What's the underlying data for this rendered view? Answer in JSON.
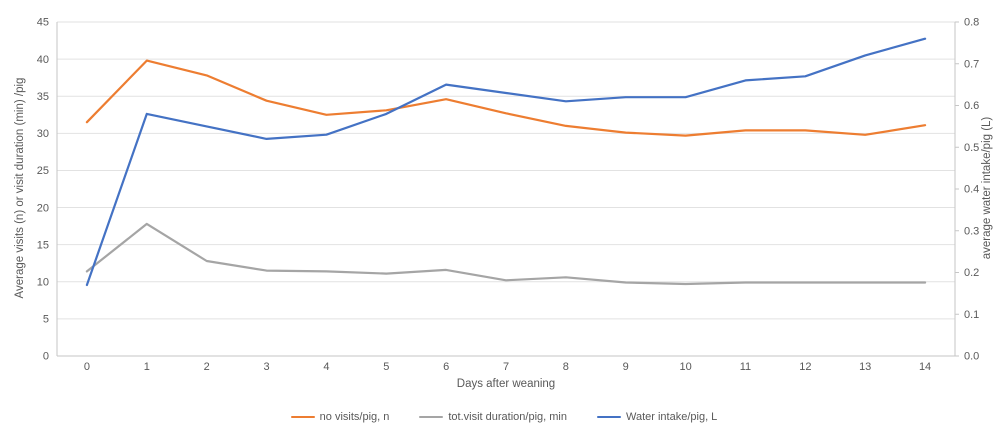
{
  "chart_data": {
    "type": "line",
    "title": "",
    "xlabel": "Days after weaning",
    "ylabel_left": "Average visits (n) or visit duration (min) /pig",
    "ylabel_right": "average water intake/pig (L)",
    "x": [
      0,
      1,
      2,
      3,
      4,
      5,
      6,
      7,
      8,
      9,
      10,
      11,
      12,
      13,
      14
    ],
    "x_tick_labels": [
      "0",
      "1",
      "2",
      "3",
      "4",
      "5",
      "6",
      "7",
      "8",
      "9",
      "10",
      "11",
      "12",
      "13",
      "14"
    ],
    "ylim_left": [
      0,
      45
    ],
    "left_tick_labels": [
      "0",
      "5",
      "10",
      "15",
      "20",
      "25",
      "30",
      "35",
      "40",
      "45"
    ],
    "ylim_right": [
      0.0,
      0.8
    ],
    "right_tick_labels": [
      "0.0",
      "0.1",
      "0.2",
      "0.3",
      "0.4",
      "0.5",
      "0.6",
      "0.7",
      "0.8"
    ],
    "grid": "horizontal-on",
    "legend_position": "bottom",
    "series": [
      {
        "name": "no visits/pig, n",
        "axis": "left",
        "color": "#ED7D31",
        "values": [
          31.5,
          39.8,
          37.8,
          34.4,
          32.5,
          33.1,
          34.6,
          32.7,
          31.0,
          30.1,
          29.7,
          30.4,
          30.4,
          29.8,
          31.1
        ]
      },
      {
        "name": "tot.visit duration/pig, min",
        "axis": "left",
        "color": "#A5A5A5",
        "values": [
          11.4,
          17.8,
          12.8,
          11.5,
          11.4,
          11.1,
          11.6,
          10.2,
          10.6,
          9.9,
          9.7,
          9.9,
          9.9,
          9.9,
          9.9
        ]
      },
      {
        "name": "Water intake/pig, L",
        "axis": "right",
        "color": "#4472C4",
        "values": [
          0.17,
          0.58,
          0.55,
          0.52,
          0.53,
          0.58,
          0.65,
          0.63,
          0.61,
          0.62,
          0.62,
          0.66,
          0.67,
          0.72,
          0.76
        ]
      }
    ]
  },
  "colors": {
    "background": "#FFFFFF",
    "gridline": "#E2E2E2",
    "axis_line": "#C6C6C6",
    "axis_text": "#595959"
  }
}
